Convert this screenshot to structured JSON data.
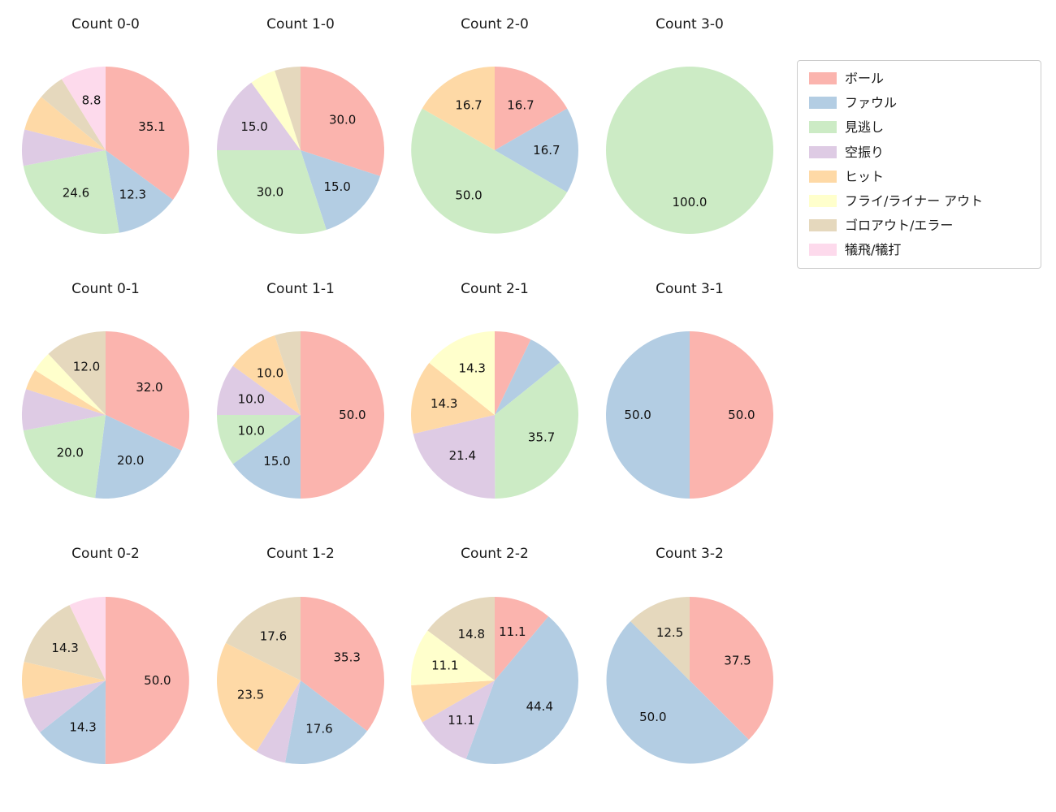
{
  "figure": {
    "background": "#ffffff"
  },
  "legend": {
    "position": "top-right",
    "items": [
      {
        "label": "ボール",
        "color": "#fbb4ae"
      },
      {
        "label": "ファウル",
        "color": "#b3cde3"
      },
      {
        "label": "見逃し",
        "color": "#ccebc5"
      },
      {
        "label": "空振り",
        "color": "#decbe4"
      },
      {
        "label": "ヒット",
        "color": "#fed9a6"
      },
      {
        "label": "フライ/ライナー アウト",
        "color": "#ffffcc"
      },
      {
        "label": "ゴロアウト/エラー",
        "color": "#e5d8bd"
      },
      {
        "label": "犠飛/犠打",
        "color": "#fddaec"
      }
    ]
  },
  "chart_data": [
    {
      "type": "pie",
      "title": "Count 0-0",
      "start_angle": "top",
      "direction": "clockwise",
      "slices": [
        {
          "category": "ボール",
          "value": 35.1,
          "label": "35.1"
        },
        {
          "category": "ファウル",
          "value": 12.3,
          "label": "12.3"
        },
        {
          "category": "見逃し",
          "value": 24.6,
          "label": "24.6"
        },
        {
          "category": "空振り",
          "value": 7.0,
          "label": ""
        },
        {
          "category": "ヒット",
          "value": 7.0,
          "label": ""
        },
        {
          "category": "ゴロアウト/エラー",
          "value": 5.2,
          "label": ""
        },
        {
          "category": "犠飛/犠打",
          "value": 8.8,
          "label": "8.8"
        }
      ]
    },
    {
      "type": "pie",
      "title": "Count 1-0",
      "start_angle": "top",
      "direction": "clockwise",
      "slices": [
        {
          "category": "ボール",
          "value": 30.0,
          "label": "30.0"
        },
        {
          "category": "ファウル",
          "value": 15.0,
          "label": "15.0"
        },
        {
          "category": "見逃し",
          "value": 30.0,
          "label": "30.0"
        },
        {
          "category": "空振り",
          "value": 15.0,
          "label": "15.0"
        },
        {
          "category": "フライ/ライナー アウト",
          "value": 5.0,
          "label": ""
        },
        {
          "category": "ゴロアウト/エラー",
          "value": 5.0,
          "label": ""
        }
      ]
    },
    {
      "type": "pie",
      "title": "Count 2-0",
      "start_angle": "top",
      "direction": "clockwise",
      "slices": [
        {
          "category": "ボール",
          "value": 16.7,
          "label": "16.7"
        },
        {
          "category": "ファウル",
          "value": 16.7,
          "label": "16.7"
        },
        {
          "category": "見逃し",
          "value": 50.0,
          "label": "50.0"
        },
        {
          "category": "ヒット",
          "value": 16.7,
          "label": "16.7"
        }
      ]
    },
    {
      "type": "pie",
      "title": "Count 3-0",
      "start_angle": "top",
      "direction": "clockwise",
      "slices": [
        {
          "category": "見逃し",
          "value": 100.0,
          "label": "100.0"
        }
      ]
    },
    {
      "type": "pie",
      "title": "Count 0-1",
      "start_angle": "top",
      "direction": "clockwise",
      "slices": [
        {
          "category": "ボール",
          "value": 32.0,
          "label": "32.0"
        },
        {
          "category": "ファウル",
          "value": 20.0,
          "label": "20.0"
        },
        {
          "category": "見逃し",
          "value": 20.0,
          "label": "20.0"
        },
        {
          "category": "空振り",
          "value": 8.0,
          "label": ""
        },
        {
          "category": "ヒット",
          "value": 4.0,
          "label": ""
        },
        {
          "category": "フライ/ライナー アウト",
          "value": 4.0,
          "label": ""
        },
        {
          "category": "ゴロアウト/エラー",
          "value": 12.0,
          "label": "12.0"
        }
      ]
    },
    {
      "type": "pie",
      "title": "Count 1-1",
      "start_angle": "top",
      "direction": "clockwise",
      "slices": [
        {
          "category": "ボール",
          "value": 50.0,
          "label": "50.0"
        },
        {
          "category": "ファウル",
          "value": 15.0,
          "label": "15.0"
        },
        {
          "category": "見逃し",
          "value": 10.0,
          "label": "10.0"
        },
        {
          "category": "空振り",
          "value": 10.0,
          "label": "10.0"
        },
        {
          "category": "ヒット",
          "value": 10.0,
          "label": "10.0"
        },
        {
          "category": "ゴロアウト/エラー",
          "value": 5.0,
          "label": ""
        }
      ]
    },
    {
      "type": "pie",
      "title": "Count 2-1",
      "start_angle": "top",
      "direction": "clockwise",
      "slices": [
        {
          "category": "ボール",
          "value": 7.1,
          "label": ""
        },
        {
          "category": "ファウル",
          "value": 7.1,
          "label": ""
        },
        {
          "category": "見逃し",
          "value": 35.7,
          "label": "35.7"
        },
        {
          "category": "空振り",
          "value": 21.4,
          "label": "21.4"
        },
        {
          "category": "ヒット",
          "value": 14.3,
          "label": "14.3"
        },
        {
          "category": "フライ/ライナー アウト",
          "value": 14.3,
          "label": "14.3"
        }
      ]
    },
    {
      "type": "pie",
      "title": "Count 3-1",
      "start_angle": "top",
      "direction": "clockwise",
      "slices": [
        {
          "category": "ボール",
          "value": 50.0,
          "label": "50.0"
        },
        {
          "category": "ファウル",
          "value": 50.0,
          "label": "50.0"
        }
      ]
    },
    {
      "type": "pie",
      "title": "Count 0-2",
      "start_angle": "top",
      "direction": "clockwise",
      "slices": [
        {
          "category": "ボール",
          "value": 50.0,
          "label": "50.0"
        },
        {
          "category": "ファウル",
          "value": 14.3,
          "label": "14.3"
        },
        {
          "category": "空振り",
          "value": 7.1,
          "label": ""
        },
        {
          "category": "ヒット",
          "value": 7.1,
          "label": ""
        },
        {
          "category": "ゴロアウト/エラー",
          "value": 14.3,
          "label": "14.3"
        },
        {
          "category": "犠飛/犠打",
          "value": 7.1,
          "label": ""
        }
      ]
    },
    {
      "type": "pie",
      "title": "Count 1-2",
      "start_angle": "top",
      "direction": "clockwise",
      "slices": [
        {
          "category": "ボール",
          "value": 35.3,
          "label": "35.3"
        },
        {
          "category": "ファウル",
          "value": 17.6,
          "label": "17.6"
        },
        {
          "category": "空振り",
          "value": 5.9,
          "label": ""
        },
        {
          "category": "ヒット",
          "value": 23.5,
          "label": "23.5"
        },
        {
          "category": "ゴロアウト/エラー",
          "value": 17.6,
          "label": "17.6"
        }
      ]
    },
    {
      "type": "pie",
      "title": "Count 2-2",
      "start_angle": "top",
      "direction": "clockwise",
      "slices": [
        {
          "category": "ボール",
          "value": 11.1,
          "label": "11.1"
        },
        {
          "category": "ファウル",
          "value": 44.4,
          "label": "44.4"
        },
        {
          "category": "空振り",
          "value": 11.1,
          "label": "11.1"
        },
        {
          "category": "ヒット",
          "value": 7.4,
          "label": ""
        },
        {
          "category": "フライ/ライナー アウト",
          "value": 11.1,
          "label": "11.1"
        },
        {
          "category": "ゴロアウト/エラー",
          "value": 14.8,
          "label": "14.8"
        }
      ]
    },
    {
      "type": "pie",
      "title": "Count 3-2",
      "start_angle": "top",
      "direction": "clockwise",
      "slices": [
        {
          "category": "ボール",
          "value": 37.5,
          "label": "37.5"
        },
        {
          "category": "ファウル",
          "value": 50.0,
          "label": "50.0"
        },
        {
          "category": "ゴロアウト/エラー",
          "value": 12.5,
          "label": "12.5"
        }
      ]
    }
  ]
}
